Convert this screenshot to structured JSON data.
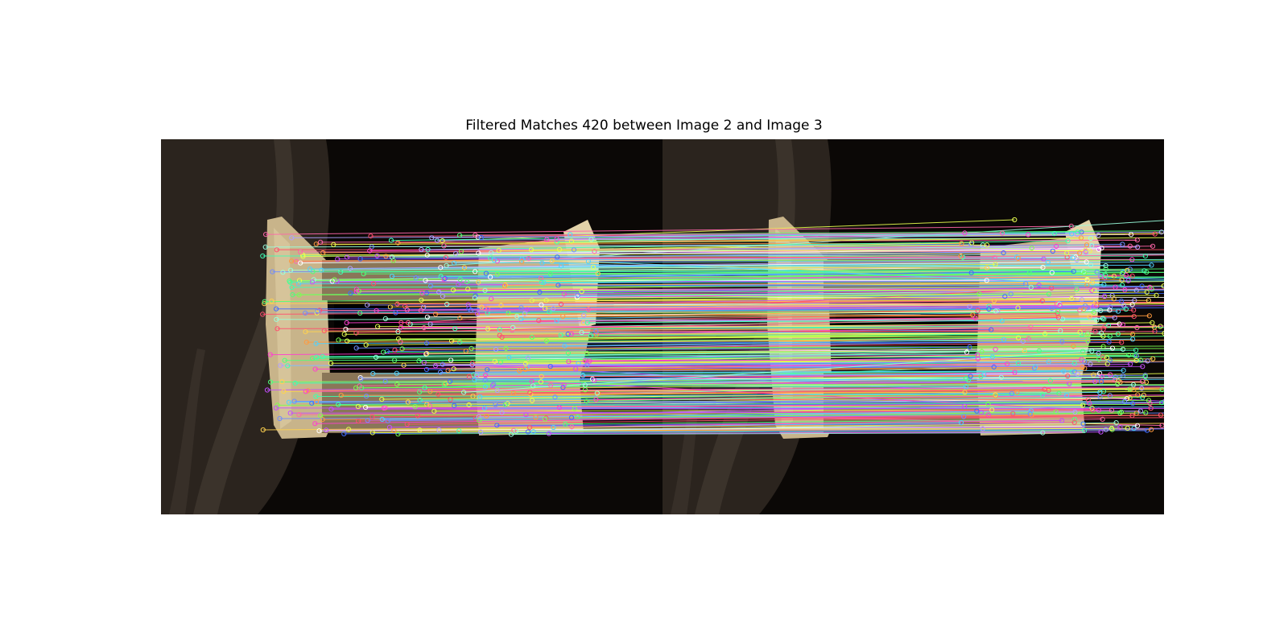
{
  "figure": {
    "title": "Filtered Matches 420 between Image 2 and Image 3"
  },
  "scene": {
    "colors": {
      "background": "#0b0806",
      "fabric": "#2b241e",
      "fabric_fold": "#5a5046",
      "bone": "#c8b48a",
      "bone_shadow": "#8a7658",
      "bone_light": "#e2d2a8"
    }
  },
  "matches": {
    "count": 420,
    "palette": [
      "#ff3fd0",
      "#4fd2ff",
      "#7dff4f",
      "#c44fff",
      "#ff9a3f",
      "#3fffb2",
      "#ff4f6e",
      "#6f8cff",
      "#e8ff4f",
      "#ffffff",
      "#3f6bff",
      "#ff66aa",
      "#9affde",
      "#b0a0ff",
      "#ffd24f",
      "#4fff7a"
    ]
  }
}
